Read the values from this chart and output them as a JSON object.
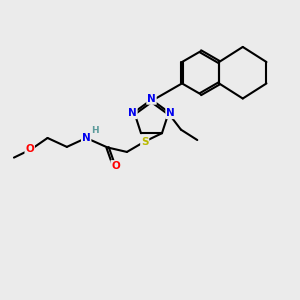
{
  "bg_color": "#ebebeb",
  "bond_color": "#000000",
  "bond_width": 1.5,
  "atom_colors": {
    "N": "#0000ee",
    "S": "#b8b800",
    "O": "#ff0000",
    "H": "#5a9a9a",
    "C": "#000000"
  },
  "font_size": 7.5,
  "fig_size": [
    3.0,
    3.0
  ],
  "dpi": 100
}
